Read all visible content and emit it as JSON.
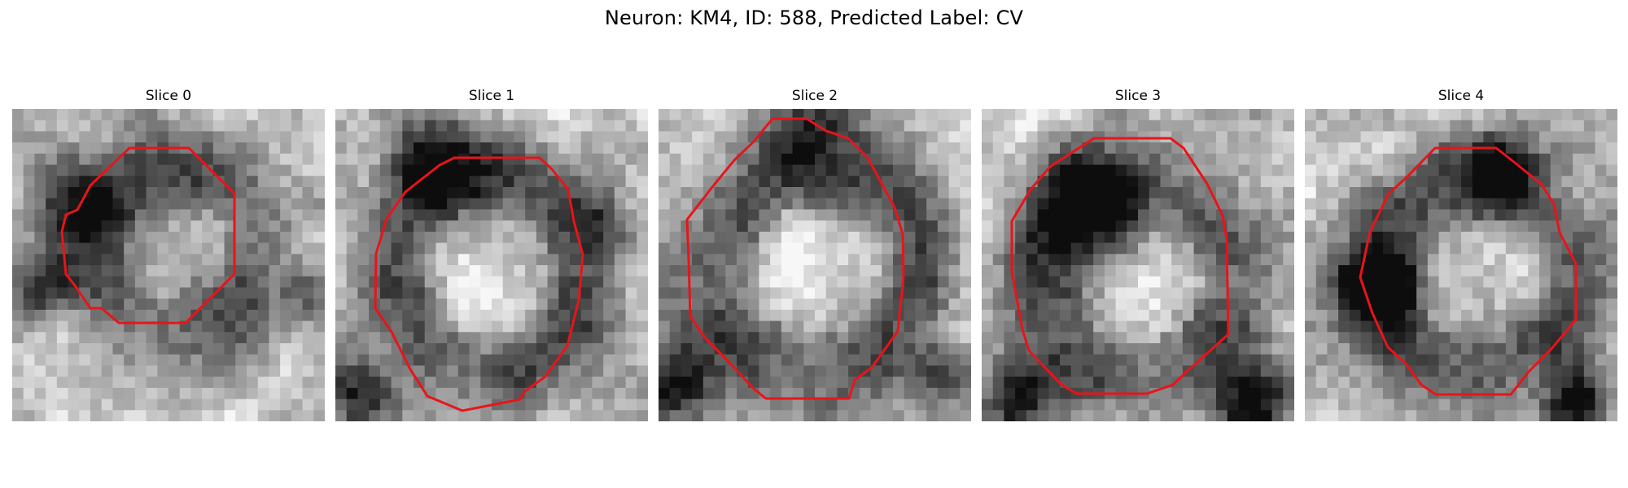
{
  "figure": {
    "title": "Neuron: KM4, ID: 588, Predicted Label: CV",
    "outline_color": "#e8141a",
    "colormap": "grayscale",
    "panels": [
      {
        "title": "Slice 0"
      },
      {
        "title": "Slice 1"
      },
      {
        "title": "Slice 2"
      },
      {
        "title": "Slice 3"
      },
      {
        "title": "Slice 4"
      }
    ]
  }
}
